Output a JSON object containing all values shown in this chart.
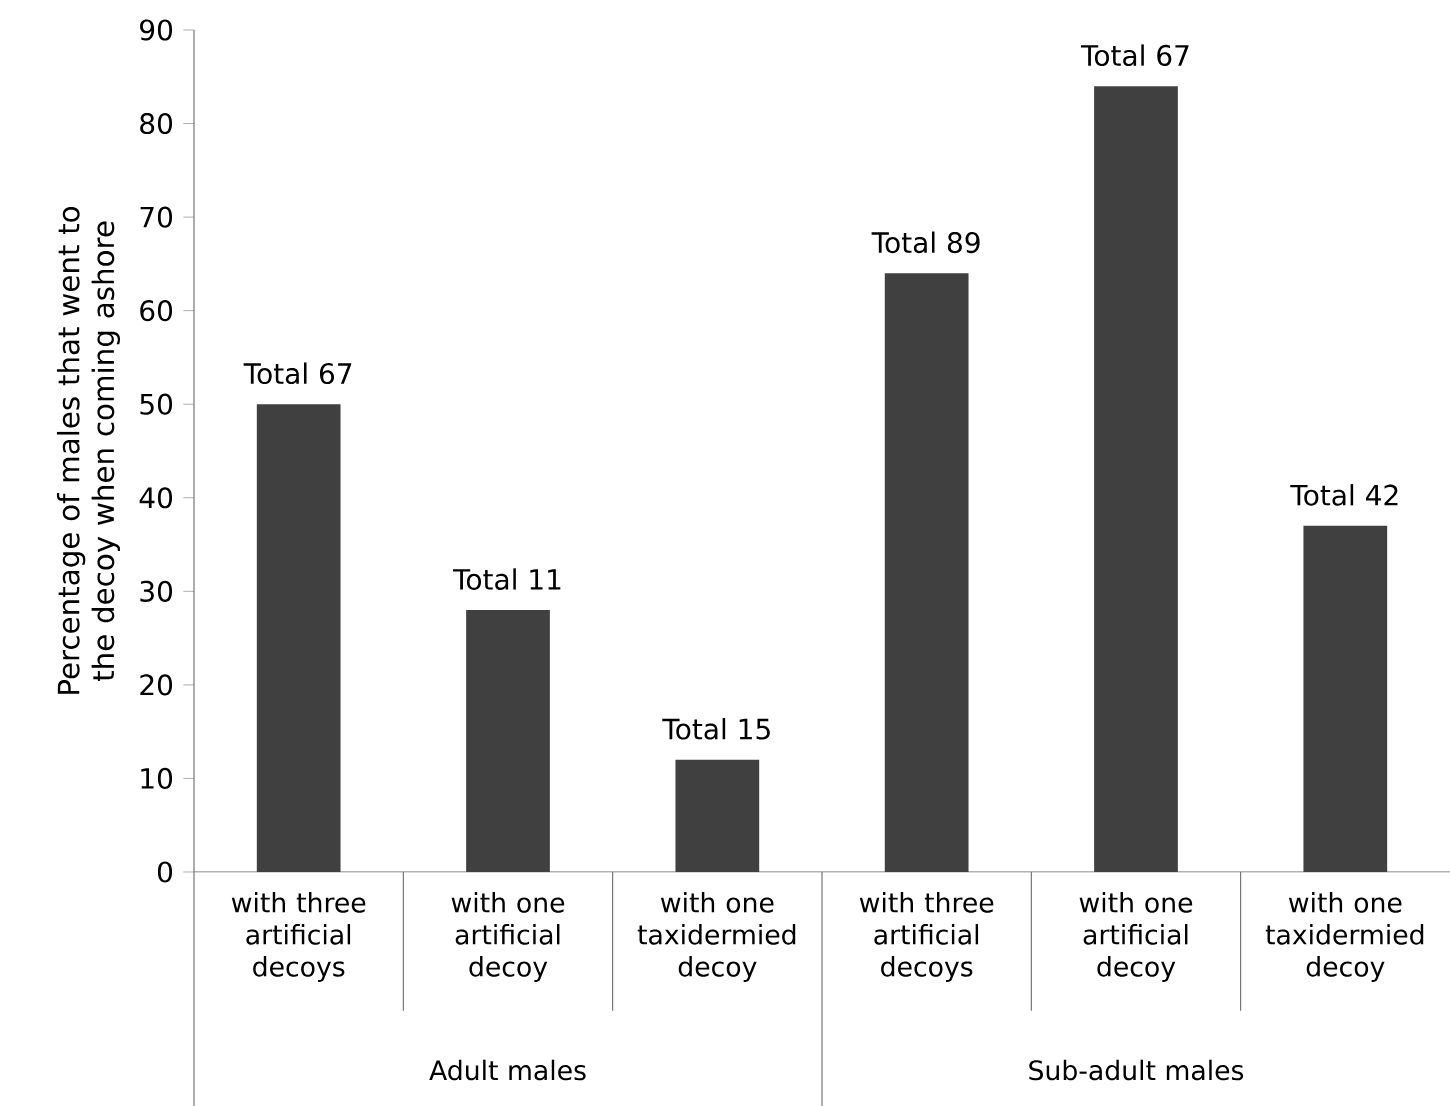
{
  "chart_data": {
    "type": "bar",
    "ylabel": "Percentage of males that went to the decoy when coming ashore",
    "categories": [
      "with three artificial decoys",
      "with one artificial decoy",
      "with one taxidermied decoy",
      "with three artificial decoys",
      "with one artificial decoy",
      "with one taxidermied decoy"
    ],
    "values": [
      50,
      28,
      12,
      64,
      84,
      37
    ],
    "value_labels": [
      "Total 67",
      "Total 11",
      "Total 15",
      "Total 89",
      "Total 67",
      "Total 42"
    ],
    "color": "#404040",
    "ylim": [
      0,
      90
    ],
    "yticks": [
      0,
      10,
      20,
      30,
      40,
      50,
      60,
      70,
      80,
      90
    ],
    "annotations": [
      "Adult males",
      "Sub-adult males"
    ],
    "grid": false
  }
}
